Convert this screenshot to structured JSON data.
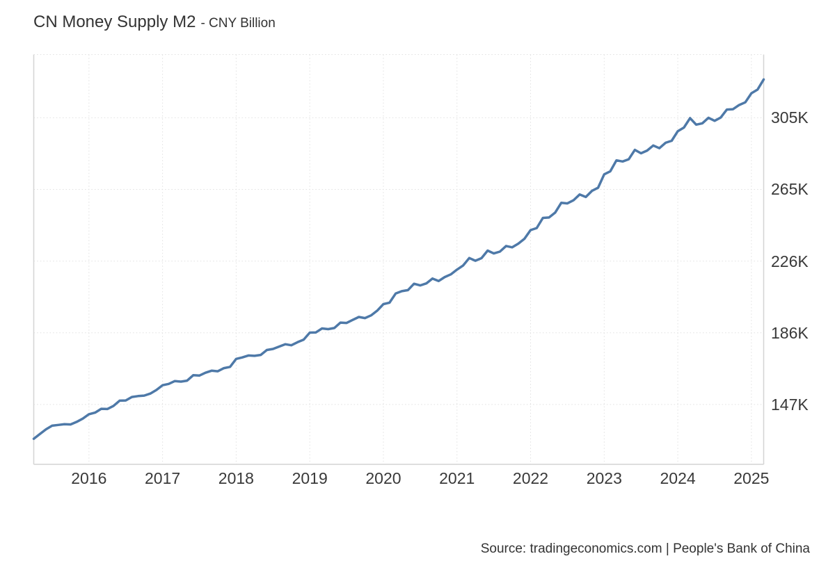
{
  "chart_data": {
    "type": "line",
    "title": "CN Money Supply M2",
    "subtitle": "- CNY Billion",
    "unit": "CNY Billion",
    "source": "Source: tradingeconomics.com | People's Bank of China",
    "frequency": "monthly",
    "x_start_month": "2015-04",
    "x_end_month": "2025-03",
    "xticks": [
      2016,
      2017,
      2018,
      2019,
      2020,
      2021,
      2022,
      2023,
      2024,
      2025
    ],
    "yticks": [
      {
        "label": "147K",
        "value": 147000
      },
      {
        "label": "186K",
        "value": 186500
      },
      {
        "label": "226K",
        "value": 226000
      },
      {
        "label": "265K",
        "value": 265500
      },
      {
        "label": "305K",
        "value": 305000
      }
    ],
    "ylim": [
      114000,
      339800
    ],
    "grid": true,
    "legend": "none",
    "line_color": "#4e79a8",
    "series": [
      {
        "name": "CN Money Supply M2",
        "values": [
          128100,
          130700,
          133300,
          135300,
          135700,
          136100,
          136000,
          137400,
          139200,
          141600,
          142500,
          144600,
          144500,
          146200,
          149100,
          149200,
          151100,
          151600,
          151900,
          153000,
          155000,
          157600,
          158300,
          159900,
          159600,
          160100,
          163100,
          162900,
          164500,
          165600,
          165300,
          167000,
          167700,
          172100,
          172900,
          174000,
          173800,
          174300,
          177000,
          177600,
          178900,
          180200,
          179600,
          181300,
          182700,
          186600,
          186700,
          188900,
          188500,
          189100,
          192100,
          191900,
          193600,
          195200,
          194600,
          196100,
          198700,
          202300,
          203100,
          208100,
          209400,
          210000,
          213500,
          212600,
          213700,
          216400,
          215000,
          217200,
          218700,
          221300,
          223600,
          227700,
          226200,
          227600,
          231800,
          230200,
          231200,
          234300,
          233600,
          235600,
          238300,
          243100,
          244200,
          249800,
          250000,
          252700,
          258100,
          257800,
          259500,
          262700,
          261300,
          264700,
          266400,
          273800,
          275500,
          281500,
          280900,
          282100,
          287300,
          285400,
          286900,
          289700,
          288200,
          291200,
          292300,
          297600,
          299600,
          304800,
          301200,
          301900,
          305000,
          303300,
          305100,
          309500,
          309700,
          312000,
          313500,
          318500,
          320500,
          326100
        ]
      }
    ]
  }
}
